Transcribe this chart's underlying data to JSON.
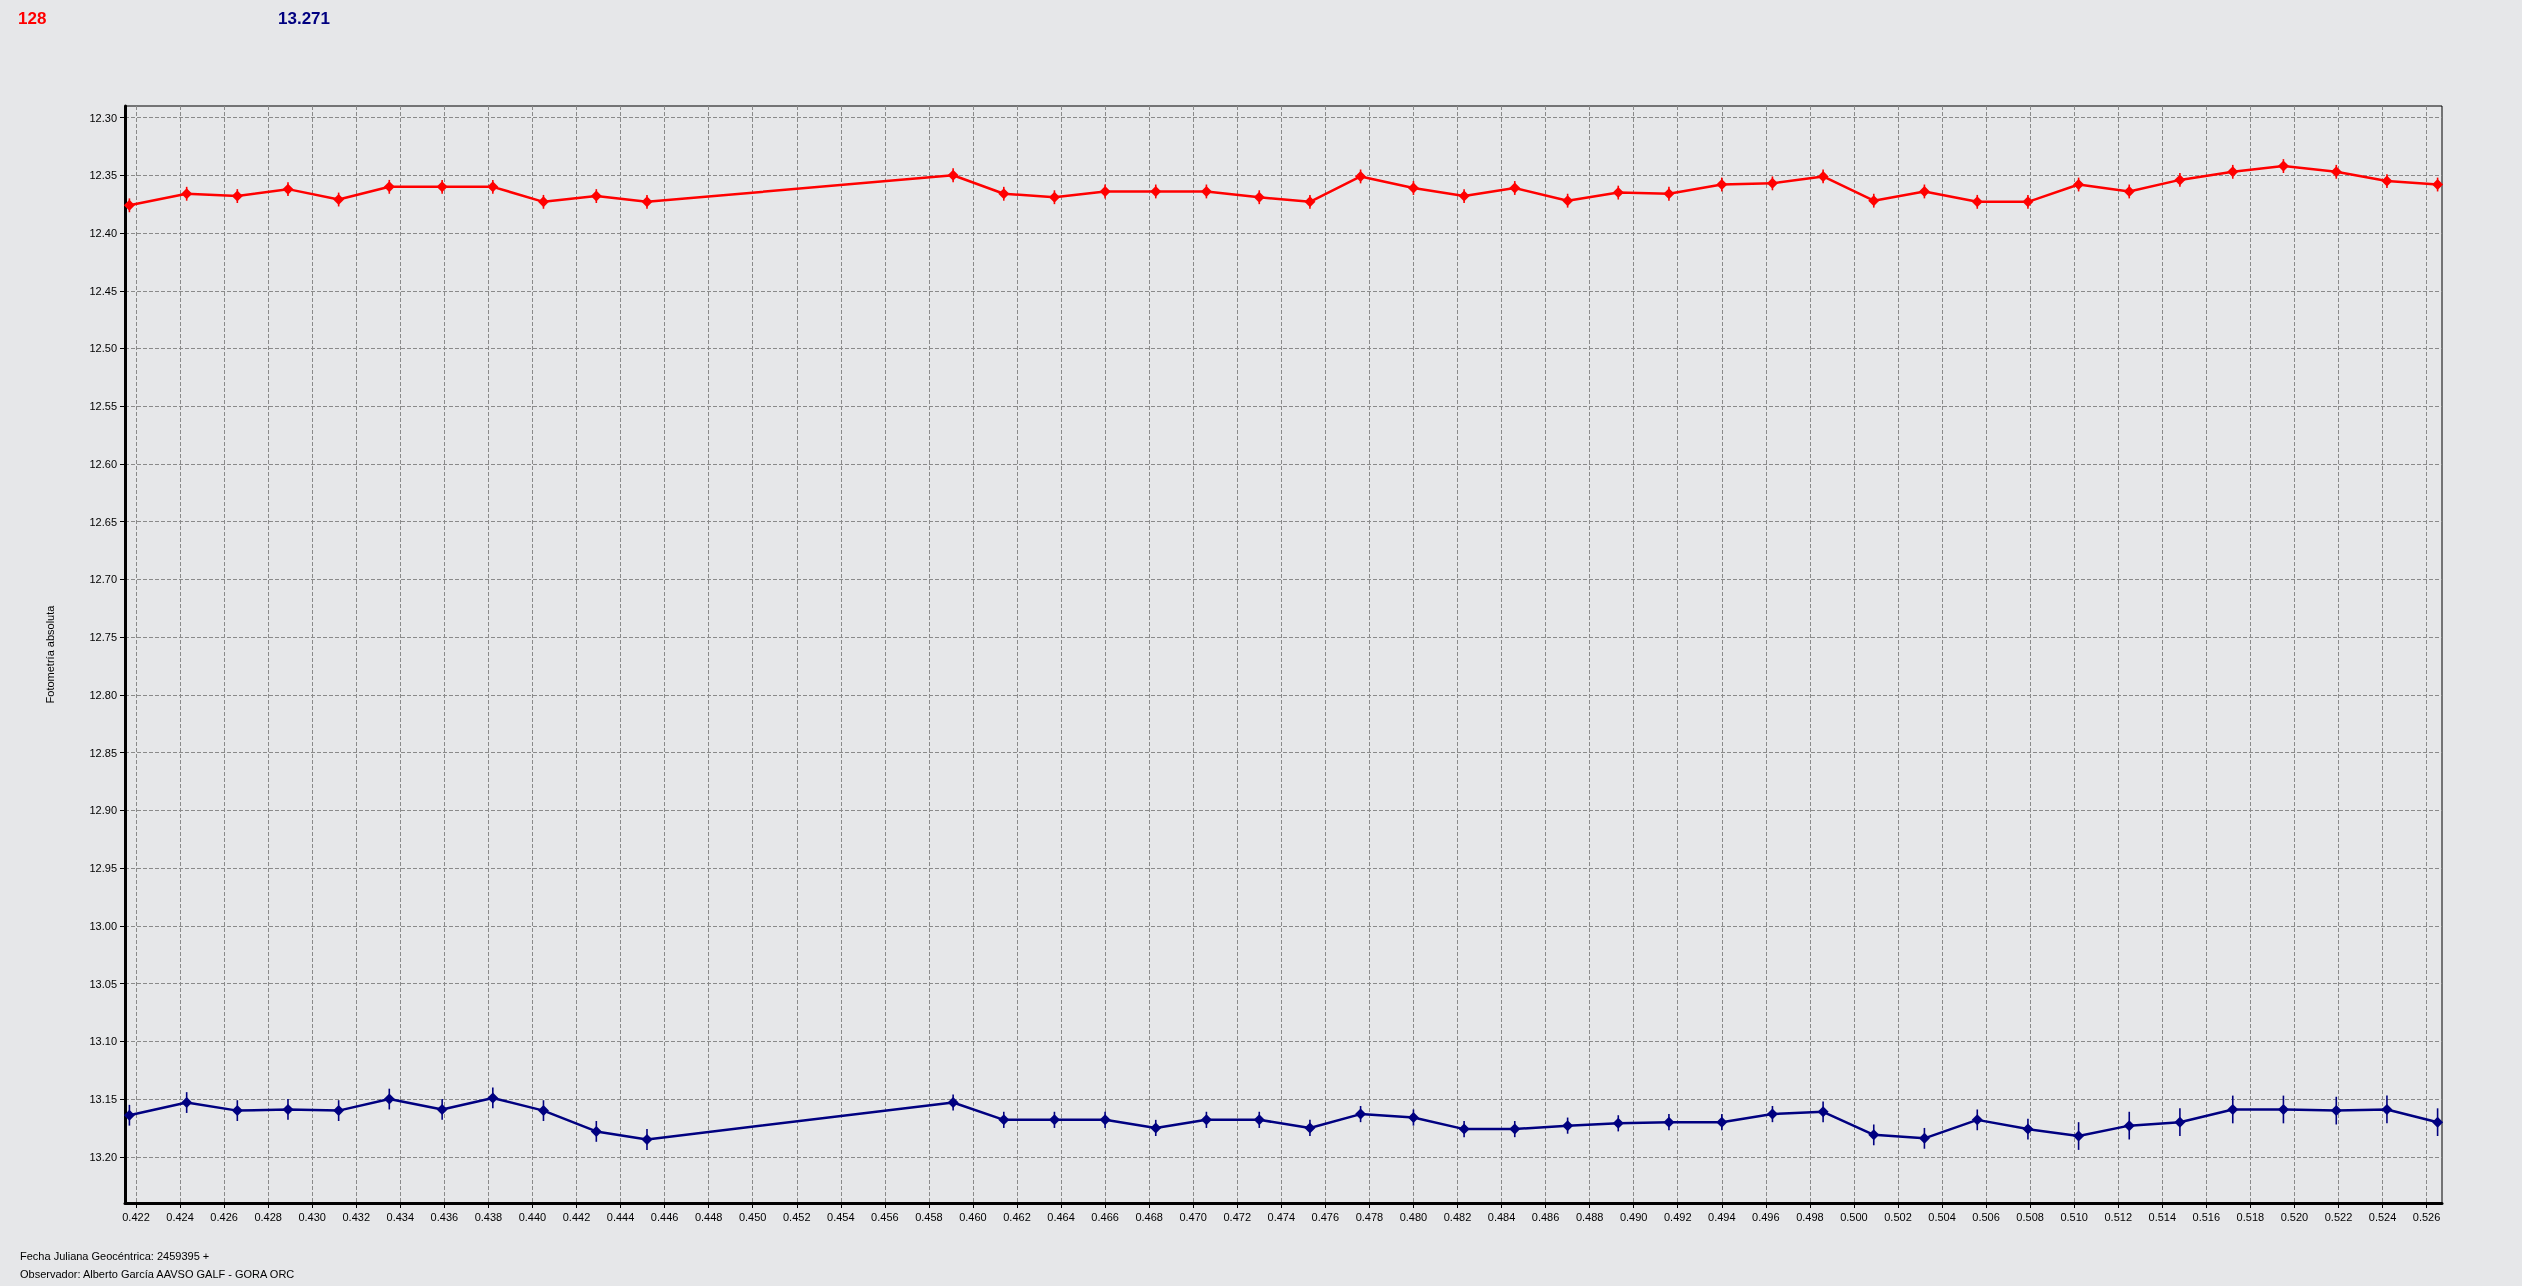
{
  "chart_data": {
    "type": "line",
    "ylabel": "Fotometría absoluta",
    "annotations": [
      "128",
      "13.271",
      "Fecha Juliana Geocéntrica: 2459395 +",
      "Observador: Alberto García AAVSO GALF - GORA ORC"
    ],
    "x": [
      0.4217,
      0.4243,
      0.4266,
      0.4289,
      0.4312,
      0.4335,
      0.4359,
      0.4382,
      0.4405,
      0.4429,
      0.4452,
      0.4591,
      0.4614,
      0.4637,
      0.466,
      0.4683,
      0.4706,
      0.473,
      0.4753,
      0.4776,
      0.48,
      0.4823,
      0.4846,
      0.487,
      0.4893,
      0.4916,
      0.494,
      0.4963,
      0.4986,
      0.5009,
      0.5032,
      0.5056,
      0.5079,
      0.5102,
      0.5125,
      0.5148,
      0.5172,
      0.5195,
      0.5219,
      0.5242,
      0.5265
    ],
    "series": [
      {
        "color": "#ff0000",
        "values": [
          12.376,
          12.366,
          12.368,
          12.362,
          12.371,
          12.36,
          12.36,
          12.36,
          12.373,
          12.368,
          12.373,
          12.35,
          12.366,
          12.369,
          12.364,
          12.364,
          12.364,
          12.369,
          12.373,
          12.351,
          12.361,
          12.368,
          12.361,
          12.372,
          12.365,
          12.366,
          12.358,
          12.357,
          12.351,
          12.372,
          12.364,
          12.373,
          12.373,
          12.358,
          12.364,
          12.354,
          12.347,
          12.342,
          12.347,
          12.355,
          12.358
        ],
        "errors": [
          0.006,
          0.006,
          0.006,
          0.006,
          0.006,
          0.006,
          0.006,
          0.006,
          0.006,
          0.006,
          0.006,
          0.006,
          0.006,
          0.006,
          0.006,
          0.006,
          0.006,
          0.006,
          0.006,
          0.006,
          0.006,
          0.006,
          0.006,
          0.006,
          0.006,
          0.006,
          0.006,
          0.006,
          0.006,
          0.006,
          0.006,
          0.006,
          0.006,
          0.006,
          0.006,
          0.006,
          0.006,
          0.006,
          0.006,
          0.006,
          0.006
        ]
      },
      {
        "color": "#000080",
        "values": [
          13.164,
          13.153,
          13.16,
          13.159,
          13.16,
          13.15,
          13.159,
          13.149,
          13.16,
          13.178,
          13.185,
          13.153,
          13.168,
          13.168,
          13.168,
          13.175,
          13.168,
          13.168,
          13.175,
          13.163,
          13.166,
          13.176,
          13.176,
          13.173,
          13.171,
          13.17,
          13.17,
          13.163,
          13.161,
          13.181,
          13.184,
          13.168,
          13.176,
          13.182,
          13.173,
          13.17,
          13.159,
          13.159,
          13.16,
          13.159,
          13.17
        ],
        "errors": [
          0.009,
          0.009,
          0.009,
          0.009,
          0.009,
          0.009,
          0.009,
          0.009,
          0.009,
          0.009,
          0.009,
          0.007,
          0.007,
          0.007,
          0.007,
          0.007,
          0.007,
          0.007,
          0.007,
          0.007,
          0.007,
          0.007,
          0.007,
          0.007,
          0.007,
          0.007,
          0.007,
          0.007,
          0.009,
          0.009,
          0.009,
          0.009,
          0.009,
          0.012,
          0.012,
          0.012,
          0.012,
          0.012,
          0.012,
          0.012,
          0.012
        ]
      }
    ],
    "xlim": [
      0.4215,
      0.5267
    ],
    "xticks": [
      {
        "value": 0.422,
        "label": "0.422"
      },
      {
        "value": 0.424,
        "label": "0.424"
      },
      {
        "value": 0.426,
        "label": "0.426"
      },
      {
        "value": 0.428,
        "label": "0.428"
      },
      {
        "value": 0.43,
        "label": "0.430"
      },
      {
        "value": 0.432,
        "label": "0.432"
      },
      {
        "value": 0.434,
        "label": "0.434"
      },
      {
        "value": 0.436,
        "label": "0.436"
      },
      {
        "value": 0.438,
        "label": "0.438"
      },
      {
        "value": 0.44,
        "label": "0.440"
      },
      {
        "value": 0.442,
        "label": "0.442"
      },
      {
        "value": 0.444,
        "label": "0.444"
      },
      {
        "value": 0.446,
        "label": "0.446"
      },
      {
        "value": 0.448,
        "label": "0.448"
      },
      {
        "value": 0.45,
        "label": "0.450"
      },
      {
        "value": 0.452,
        "label": "0.452"
      },
      {
        "value": 0.454,
        "label": "0.454"
      },
      {
        "value": 0.456,
        "label": "0.456"
      },
      {
        "value": 0.458,
        "label": "0.458"
      },
      {
        "value": 0.46,
        "label": "0.460"
      },
      {
        "value": 0.462,
        "label": "0.462"
      },
      {
        "value": 0.464,
        "label": "0.464"
      },
      {
        "value": 0.466,
        "label": "0.466"
      },
      {
        "value": 0.468,
        "label": "0.468"
      },
      {
        "value": 0.47,
        "label": "0.470"
      },
      {
        "value": 0.472,
        "label": "0.472"
      },
      {
        "value": 0.474,
        "label": "0.474"
      },
      {
        "value": 0.476,
        "label": "0.476"
      },
      {
        "value": 0.478,
        "label": "0.478"
      },
      {
        "value": 0.48,
        "label": "0.480"
      },
      {
        "value": 0.482,
        "label": "0.482"
      },
      {
        "value": 0.484,
        "label": "0.484"
      },
      {
        "value": 0.486,
        "label": "0.486"
      },
      {
        "value": 0.488,
        "label": "0.488"
      },
      {
        "value": 0.49,
        "label": "0.490"
      },
      {
        "value": 0.492,
        "label": "0.492"
      },
      {
        "value": 0.494,
        "label": "0.494"
      },
      {
        "value": 0.496,
        "label": "0.496"
      },
      {
        "value": 0.498,
        "label": "0.498"
      },
      {
        "value": 0.5,
        "label": "0.500"
      },
      {
        "value": 0.502,
        "label": "0.502"
      },
      {
        "value": 0.504,
        "label": "0.504"
      },
      {
        "value": 0.506,
        "label": "0.506"
      },
      {
        "value": 0.508,
        "label": "0.508"
      },
      {
        "value": 0.51,
        "label": "0.510"
      },
      {
        "value": 0.512,
        "label": "0.512"
      },
      {
        "value": 0.514,
        "label": "0.514"
      },
      {
        "value": 0.516,
        "label": "0.516"
      },
      {
        "value": 0.518,
        "label": "0.518"
      },
      {
        "value": 0.52,
        "label": "0.520"
      },
      {
        "value": 0.522,
        "label": "0.522"
      },
      {
        "value": 0.524,
        "label": "0.524"
      },
      {
        "value": 0.526,
        "label": "0.526"
      }
    ],
    "ylim": [
      13.24,
      12.29
    ],
    "yticks": [
      {
        "value": 12.3,
        "label": "12.30"
      },
      {
        "value": 12.35,
        "label": "12.35"
      },
      {
        "value": 12.4,
        "label": "12.40"
      },
      {
        "value": 12.45,
        "label": "12.45"
      },
      {
        "value": 12.5,
        "label": "12.50"
      },
      {
        "value": 12.55,
        "label": "12.55"
      },
      {
        "value": 12.6,
        "label": "12.60"
      },
      {
        "value": 12.65,
        "label": "12.65"
      },
      {
        "value": 12.7,
        "label": "12.70"
      },
      {
        "value": 12.75,
        "label": "12.75"
      },
      {
        "value": 12.8,
        "label": "12.80"
      },
      {
        "value": 12.85,
        "label": "12.85"
      },
      {
        "value": 12.9,
        "label": "12.90"
      },
      {
        "value": 12.95,
        "label": "12.95"
      },
      {
        "value": 13.0,
        "label": "13.00"
      },
      {
        "value": 13.05,
        "label": "13.05"
      },
      {
        "value": 13.1,
        "label": "13.10"
      },
      {
        "value": 13.15,
        "label": "13.15"
      },
      {
        "value": 13.2,
        "label": "13.20"
      }
    ],
    "grid": true,
    "marker": "diamond",
    "line_style": "solid"
  }
}
